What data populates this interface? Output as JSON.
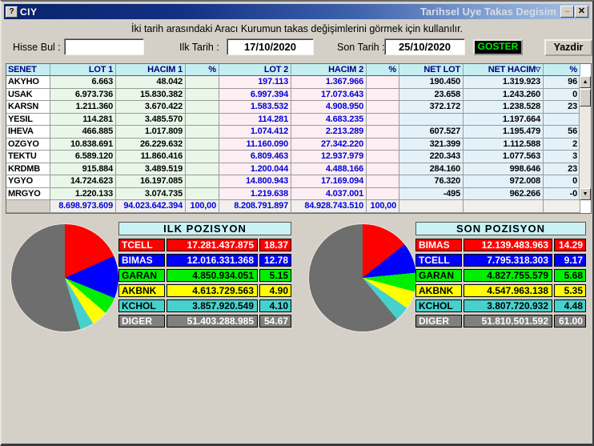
{
  "window": {
    "title": "CIY",
    "title_right": "Tarihsel Uye Takas Degisim",
    "help_glyph": "?",
    "minimize_glyph": "_",
    "close_glyph": "x"
  },
  "instruction": "İki tarih arasındaki  Aracı Kurumun takas değişimlerini görmek için kullanılır.",
  "form": {
    "hisse_bul_label": "Hisse Bul :",
    "hisse_bul_value": "",
    "ilk_tarih_label": "Ilk Tarih :",
    "ilk_tarih_value": "17/10/2020",
    "son_tarih_label": "Son Tarih :",
    "son_tarih_value": "25/10/2020",
    "goster_label": "GOSTER",
    "yazdir_label": "Yazdir"
  },
  "grid": {
    "columns": [
      "SENET",
      "LOT 1",
      "HACIM 1",
      "%",
      "LOT 2",
      "HACIM 2",
      "%",
      "NET LOT",
      "NET HACIM",
      "%"
    ],
    "sort_indicator_column": "NET HACIM",
    "sort_glyph": "▽",
    "rows": [
      [
        "AKYHO",
        "6.663",
        "48.042",
        "",
        "197.113",
        "1.367.966",
        "",
        "190.450",
        "1.319.923",
        "96"
      ],
      [
        "USAK",
        "6.973.736",
        "15.830.382",
        "",
        "6.997.394",
        "17.073.643",
        "",
        "23.658",
        "1.243.260",
        "0"
      ],
      [
        "KARSN",
        "1.211.360",
        "3.670.422",
        "",
        "1.583.532",
        "4.908.950",
        "",
        "372.172",
        "1.238.528",
        "23"
      ],
      [
        "YESIL",
        "114.281",
        "3.485.570",
        "",
        "114.281",
        "4.683.235",
        "",
        "",
        "1.197.664",
        ""
      ],
      [
        "IHEVA",
        "466.885",
        "1.017.809",
        "",
        "1.074.412",
        "2.213.289",
        "",
        "607.527",
        "1.195.479",
        "56"
      ],
      [
        "OZGYO",
        "10.838.691",
        "26.229.632",
        "",
        "11.160.090",
        "27.342.220",
        "",
        "321.399",
        "1.112.588",
        "2"
      ],
      [
        "TEKTU",
        "6.589.120",
        "11.860.416",
        "",
        "6.809.463",
        "12.937.979",
        "",
        "220.343",
        "1.077.563",
        "3"
      ],
      [
        "KRDMB",
        "915.884",
        "3.489.519",
        "",
        "1.200.044",
        "4.488.166",
        "",
        "284.160",
        "998.646",
        "23"
      ],
      [
        "YGYO",
        "14.724.623",
        "16.197.085",
        "",
        "14.800.943",
        "17.169.094",
        "",
        "76.320",
        "972.008",
        "0"
      ],
      [
        "MRGYO",
        "1.220.133",
        "3.074.735",
        "",
        "1.219.638",
        "4.037.001",
        "",
        "-495",
        "962.266",
        "-0"
      ]
    ],
    "totals": [
      "",
      "8.698.973.609",
      "94.023.642.394",
      "100,00",
      "8.208.791.897",
      "84.928.743.510",
      "100,00",
      "",
      "",
      ""
    ],
    "scroll_up_glyph": "▲",
    "scroll_down_glyph": "▼"
  },
  "chart_data": [
    {
      "type": "pie",
      "title": "ILK POZISYON",
      "labels": [
        "TCELL",
        "BIMAS",
        "GARAN",
        "AKBNK",
        "KCHOL",
        "DIGER"
      ],
      "display_values": [
        "17.281.437.875",
        "12.016.331.368",
        "4.850.934.051",
        "4.613.729.563",
        "3.857.920.549",
        "51.403.288.985"
      ],
      "percents": [
        18.37,
        12.78,
        5.15,
        4.9,
        4.1,
        54.67
      ],
      "colors": [
        "#ff0000",
        "#0000ff",
        "#00ef00",
        "#ffff00",
        "#48d1cc",
        "#6e6e6e"
      ],
      "row_colors": [
        "#ff0000",
        "#0000ff",
        "#00ef00",
        "#ffff00",
        "#48d1cc",
        "#808080"
      ],
      "text_colors": [
        "#ffffff",
        "#ffffff",
        "#000000",
        "#000000",
        "#000000",
        "#ffffff"
      ],
      "legend_position": "right-table"
    },
    {
      "type": "pie",
      "title": "SON POZISYON",
      "labels": [
        "BIMAS",
        "TCELL",
        "GARAN",
        "AKBNK",
        "KCHOL",
        "DIGER"
      ],
      "display_values": [
        "12.139.483.963",
        "7.795.318.303",
        "4.827.755.579",
        "4.547.963.138",
        "3.807.720.932",
        "51.810.501.592"
      ],
      "percents": [
        14.29,
        9.17,
        5.68,
        5.35,
        4.48,
        61.0
      ],
      "colors": [
        "#ff0000",
        "#0000ff",
        "#00ef00",
        "#ffff00",
        "#48d1cc",
        "#6e6e6e"
      ],
      "row_colors": [
        "#ff0000",
        "#0000ff",
        "#00ef00",
        "#ffff00",
        "#48d1cc",
        "#808080"
      ],
      "text_colors": [
        "#ffffff",
        "#ffffff",
        "#000000",
        "#000000",
        "#000000",
        "#ffffff"
      ],
      "legend_position": "right-table"
    }
  ]
}
